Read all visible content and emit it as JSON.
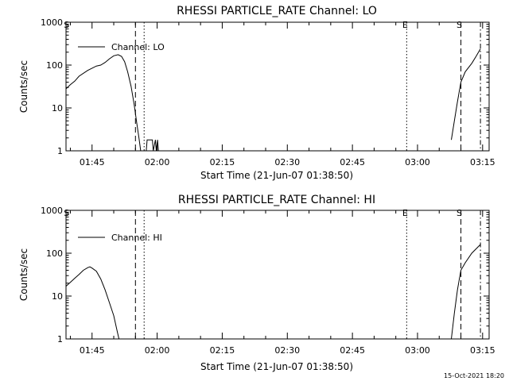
{
  "footer": {
    "date_stamp": "15-Oct-2021 18:20"
  },
  "chart_data": [
    {
      "type": "line",
      "title": "RHESSI PARTICLE_RATE Channel: LO",
      "xlabel": "Start Time (21-Jun-07 01:38:50)",
      "ylabel": "Counts/sec",
      "yscale": "log",
      "xlim_minutes": [
        99.0,
        196.5
      ],
      "ylim": [
        1,
        1000
      ],
      "x_ticks": [
        "01:45",
        "02:00",
        "02:15",
        "02:30",
        "02:45",
        "03:00",
        "03:15"
      ],
      "y_ticks": [
        "1",
        "10",
        "100",
        "1000"
      ],
      "legend": {
        "label": "Channel: LO",
        "position": "top-left"
      },
      "markers": [
        {
          "label": "S",
          "minute": 99.5,
          "style": "none"
        },
        {
          "label": "",
          "minute": 115.0,
          "style": "dashed"
        },
        {
          "label": "",
          "minute": 117.0,
          "style": "dotted"
        },
        {
          "label": "E",
          "minute": 177.5,
          "style": "dotted"
        },
        {
          "label": "S",
          "minute": 190.0,
          "style": "dashed"
        },
        {
          "label": "",
          "minute": 194.5,
          "style": "dashdot"
        }
      ],
      "series": [
        {
          "segments": [
            [
              [
                99,
                28
              ],
              [
                100,
                35
              ],
              [
                101,
                42
              ],
              [
                102,
                55
              ],
              [
                104,
                75
              ],
              [
                106,
                95
              ],
              [
                107,
                100
              ],
              [
                108,
                115
              ],
              [
                109,
                140
              ],
              [
                110,
                165
              ],
              [
                111,
                175
              ],
              [
                111.8,
                160
              ],
              [
                112.5,
                120
              ],
              [
                113.2,
                70
              ],
              [
                114,
                32
              ],
              [
                114.7,
                12
              ],
              [
                115.3,
                4.5
              ],
              [
                115.8,
                2
              ],
              [
                116.2,
                1
              ]
            ],
            [
              [
                117.5,
                1
              ],
              [
                117.7,
                1.8
              ],
              [
                118.9,
                1.8
              ],
              [
                119.1,
                1
              ],
              [
                119.6,
                1.8
              ],
              [
                119.8,
                1
              ],
              [
                120.1,
                1.8
              ],
              [
                120.3,
                1
              ]
            ],
            [
              [
                187.8,
                1.8
              ],
              [
                188.5,
                5
              ],
              [
                189.2,
                14
              ],
              [
                190,
                40
              ],
              [
                191,
                70
              ],
              [
                192.5,
                110
              ],
              [
                193.5,
                160
              ],
              [
                194.5,
                240
              ]
            ]
          ]
        }
      ]
    },
    {
      "type": "line",
      "title": "RHESSI PARTICLE_RATE Channel: HI",
      "xlabel": "Start Time (21-Jun-07 01:38:50)",
      "ylabel": "Counts/sec",
      "yscale": "log",
      "xlim_minutes": [
        99.0,
        196.5
      ],
      "ylim": [
        1,
        1000
      ],
      "x_ticks": [
        "01:45",
        "02:00",
        "02:15",
        "02:30",
        "02:45",
        "03:00",
        "03:15"
      ],
      "y_ticks": [
        "1",
        "10",
        "100",
        "1000"
      ],
      "legend": {
        "label": "Channel: HI",
        "position": "top-left"
      },
      "markers": [
        {
          "label": "S",
          "minute": 99.5,
          "style": "none"
        },
        {
          "label": "",
          "minute": 115.0,
          "style": "dashed"
        },
        {
          "label": "",
          "minute": 117.0,
          "style": "dotted"
        },
        {
          "label": "E",
          "minute": 177.5,
          "style": "dotted"
        },
        {
          "label": "S",
          "minute": 190.0,
          "style": "dashed"
        },
        {
          "label": "",
          "minute": 194.5,
          "style": "dashdot"
        }
      ],
      "series": [
        {
          "segments": [
            [
              [
                99,
                17
              ],
              [
                100,
                21
              ],
              [
                101,
                26
              ],
              [
                102,
                32
              ],
              [
                103,
                40
              ],
              [
                104,
                46
              ],
              [
                104.5,
                48
              ],
              [
                105,
                45
              ],
              [
                106,
                38
              ],
              [
                107,
                25
              ],
              [
                108,
                14
              ],
              [
                109,
                7
              ],
              [
                110,
                3.5
              ],
              [
                110.8,
                1.5
              ],
              [
                111.2,
                1
              ]
            ],
            [
              [
                187.8,
                1
              ],
              [
                188.5,
                4
              ],
              [
                189.2,
                14
              ],
              [
                190,
                40
              ],
              [
                191,
                60
              ],
              [
                192.5,
                100
              ],
              [
                194.5,
                160
              ]
            ]
          ]
        }
      ]
    }
  ]
}
